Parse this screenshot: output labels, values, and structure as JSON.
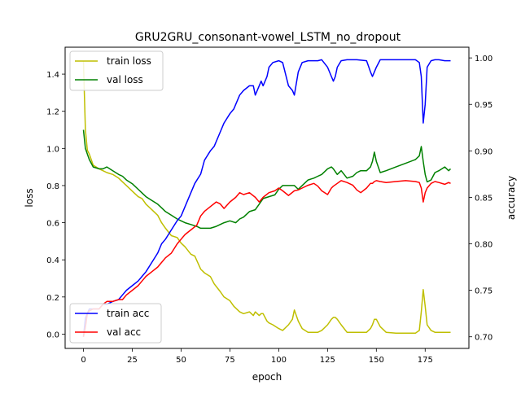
{
  "chart_data": {
    "type": "line",
    "title": "GRU2GRU_consonant-vowel_LSTM_no_dropout",
    "xlabel": "epoch",
    "ylabel_left": "loss",
    "ylabel_right": "accuracy",
    "xlim": [
      -9.4,
      197.4
    ],
    "ylim_left": [
      -0.077,
      1.545
    ],
    "ylim_right": [
      0.6875,
      1.0115
    ],
    "xticks": [
      0,
      25,
      50,
      75,
      100,
      125,
      150,
      175
    ],
    "yticks_left": [
      0.0,
      0.2,
      0.4,
      0.6,
      0.8,
      1.0,
      1.2,
      1.4
    ],
    "yticks_right": [
      0.7,
      0.75,
      0.8,
      0.85,
      0.9,
      0.95,
      1.0
    ],
    "grid": false,
    "legend_left": {
      "placement": "upper left",
      "entries": [
        "train loss",
        "val loss"
      ]
    },
    "legend_right": {
      "placement": "lower left",
      "entries": [
        "train acc",
        "val acc"
      ]
    },
    "series": [
      {
        "name": "train loss",
        "axis": "left",
        "color": "#bfbf00",
        "x": [
          0,
          1,
          2,
          3,
          5,
          8,
          10,
          12,
          15,
          18,
          20,
          22,
          25,
          28,
          30,
          32,
          35,
          38,
          40,
          42,
          45,
          48,
          50,
          52,
          55,
          57,
          60,
          62,
          65,
          67,
          70,
          72,
          75,
          77,
          80,
          82,
          85,
          87,
          88,
          90,
          91,
          92,
          94,
          95,
          97,
          100,
          102,
          105,
          107,
          108,
          110,
          112,
          115,
          120,
          122,
          125,
          127,
          128,
          129,
          130,
          132,
          135,
          140,
          145,
          147,
          148,
          149,
          150,
          152,
          155,
          160,
          165,
          170,
          172,
          173,
          174,
          175,
          176,
          178,
          180,
          182,
          185,
          187,
          188
        ],
        "values": [
          1.47,
          1.1,
          0.99,
          0.97,
          0.91,
          0.89,
          0.88,
          0.87,
          0.86,
          0.84,
          0.82,
          0.8,
          0.77,
          0.74,
          0.73,
          0.7,
          0.67,
          0.64,
          0.6,
          0.57,
          0.53,
          0.52,
          0.49,
          0.47,
          0.43,
          0.42,
          0.35,
          0.33,
          0.31,
          0.27,
          0.23,
          0.2,
          0.18,
          0.15,
          0.12,
          0.11,
          0.12,
          0.1,
          0.12,
          0.1,
          0.11,
          0.11,
          0.07,
          0.06,
          0.05,
          0.03,
          0.02,
          0.05,
          0.08,
          0.13,
          0.07,
          0.03,
          0.01,
          0.01,
          0.02,
          0.05,
          0.08,
          0.09,
          0.09,
          0.08,
          0.05,
          0.01,
          0.01,
          0.01,
          0.03,
          0.05,
          0.08,
          0.08,
          0.04,
          0.01,
          0.005,
          0.005,
          0.005,
          0.02,
          0.12,
          0.24,
          0.15,
          0.05,
          0.02,
          0.01,
          0.01,
          0.01,
          0.01,
          0.01
        ]
      },
      {
        "name": "val loss",
        "axis": "left",
        "color": "#008000",
        "x": [
          0,
          1,
          2,
          3,
          5,
          8,
          10,
          12,
          15,
          18,
          20,
          22,
          25,
          28,
          30,
          32,
          35,
          38,
          40,
          42,
          45,
          48,
          50,
          52,
          55,
          58,
          60,
          62,
          65,
          68,
          70,
          72,
          75,
          78,
          80,
          82,
          85,
          88,
          90,
          92,
          95,
          98,
          100,
          102,
          105,
          108,
          110,
          112,
          115,
          118,
          120,
          122,
          125,
          127,
          128,
          130,
          132,
          135,
          138,
          140,
          142,
          145,
          147,
          148,
          149,
          150,
          152,
          155,
          160,
          165,
          170,
          172,
          173,
          174,
          175,
          176,
          178,
          180,
          182,
          185,
          187,
          188
        ],
        "values": [
          1.1,
          1.0,
          0.97,
          0.94,
          0.9,
          0.89,
          0.89,
          0.9,
          0.88,
          0.86,
          0.85,
          0.83,
          0.81,
          0.78,
          0.76,
          0.74,
          0.72,
          0.7,
          0.68,
          0.66,
          0.64,
          0.62,
          0.61,
          0.6,
          0.59,
          0.58,
          0.57,
          0.57,
          0.57,
          0.58,
          0.59,
          0.6,
          0.61,
          0.6,
          0.62,
          0.63,
          0.66,
          0.67,
          0.7,
          0.73,
          0.74,
          0.75,
          0.78,
          0.8,
          0.8,
          0.8,
          0.78,
          0.8,
          0.83,
          0.84,
          0.85,
          0.86,
          0.89,
          0.9,
          0.89,
          0.86,
          0.88,
          0.84,
          0.85,
          0.87,
          0.88,
          0.88,
          0.9,
          0.93,
          0.98,
          0.93,
          0.87,
          0.88,
          0.9,
          0.92,
          0.94,
          0.96,
          1.01,
          0.93,
          0.86,
          0.82,
          0.83,
          0.87,
          0.88,
          0.9,
          0.88,
          0.89
        ]
      },
      {
        "name": "train acc",
        "axis": "right",
        "color": "#0000ff",
        "x": [
          0,
          1,
          2,
          3,
          5,
          8,
          10,
          12,
          15,
          18,
          20,
          22,
          25,
          28,
          30,
          32,
          35,
          38,
          40,
          42,
          45,
          48,
          50,
          52,
          55,
          57,
          60,
          62,
          65,
          67,
          70,
          72,
          75,
          77,
          80,
          82,
          85,
          87,
          88,
          90,
          91,
          92,
          94,
          95,
          97,
          100,
          102,
          105,
          107,
          108,
          110,
          112,
          115,
          120,
          122,
          125,
          127,
          128,
          129,
          130,
          132,
          135,
          140,
          145,
          147,
          148,
          149,
          150,
          152,
          155,
          160,
          165,
          170,
          172,
          173,
          174,
          175,
          176,
          178,
          180,
          182,
          185,
          187,
          188
        ],
        "values": [
          0.7,
          0.72,
          0.725,
          0.73,
          0.73,
          0.73,
          0.735,
          0.735,
          0.738,
          0.74,
          0.745,
          0.75,
          0.755,
          0.76,
          0.765,
          0.77,
          0.78,
          0.79,
          0.8,
          0.805,
          0.815,
          0.825,
          0.83,
          0.84,
          0.855,
          0.865,
          0.875,
          0.89,
          0.9,
          0.905,
          0.92,
          0.93,
          0.94,
          0.945,
          0.96,
          0.965,
          0.97,
          0.97,
          0.96,
          0.97,
          0.975,
          0.97,
          0.98,
          0.99,
          0.995,
          0.997,
          0.995,
          0.97,
          0.965,
          0.96,
          0.985,
          0.995,
          0.997,
          0.997,
          0.998,
          0.99,
          0.98,
          0.975,
          0.98,
          0.99,
          0.997,
          0.998,
          0.998,
          0.997,
          0.985,
          0.98,
          0.985,
          0.99,
          0.998,
          0.998,
          0.998,
          0.998,
          0.998,
          0.995,
          0.98,
          0.93,
          0.95,
          0.99,
          0.997,
          0.998,
          0.998,
          0.997,
          0.997,
          0.997
        ]
      },
      {
        "name": "val acc",
        "axis": "right",
        "color": "#ff0000",
        "x": [
          0,
          1,
          2,
          3,
          5,
          8,
          10,
          12,
          15,
          18,
          20,
          22,
          25,
          28,
          30,
          32,
          35,
          38,
          40,
          42,
          45,
          48,
          50,
          52,
          55,
          58,
          60,
          62,
          65,
          68,
          70,
          72,
          75,
          78,
          80,
          82,
          85,
          88,
          90,
          92,
          95,
          98,
          100,
          102,
          105,
          108,
          110,
          112,
          115,
          118,
          120,
          122,
          125,
          127,
          128,
          130,
          132,
          135,
          138,
          140,
          142,
          145,
          147,
          148,
          149,
          150,
          152,
          155,
          160,
          165,
          170,
          172,
          173,
          174,
          175,
          176,
          178,
          180,
          182,
          185,
          187,
          188
        ],
        "values": [
          0.7,
          0.71,
          0.725,
          0.728,
          0.73,
          0.73,
          0.735,
          0.738,
          0.738,
          0.74,
          0.74,
          0.745,
          0.75,
          0.755,
          0.76,
          0.765,
          0.77,
          0.775,
          0.78,
          0.785,
          0.79,
          0.8,
          0.805,
          0.81,
          0.815,
          0.82,
          0.83,
          0.835,
          0.84,
          0.845,
          0.843,
          0.838,
          0.845,
          0.85,
          0.855,
          0.853,
          0.855,
          0.85,
          0.845,
          0.85,
          0.855,
          0.857,
          0.86,
          0.857,
          0.852,
          0.857,
          0.858,
          0.86,
          0.863,
          0.865,
          0.862,
          0.857,
          0.853,
          0.86,
          0.862,
          0.865,
          0.868,
          0.866,
          0.863,
          0.858,
          0.855,
          0.86,
          0.865,
          0.865,
          0.867,
          0.868,
          0.867,
          0.866,
          0.867,
          0.868,
          0.867,
          0.866,
          0.86,
          0.845,
          0.855,
          0.86,
          0.865,
          0.867,
          0.866,
          0.864,
          0.866,
          0.865
        ]
      }
    ]
  }
}
